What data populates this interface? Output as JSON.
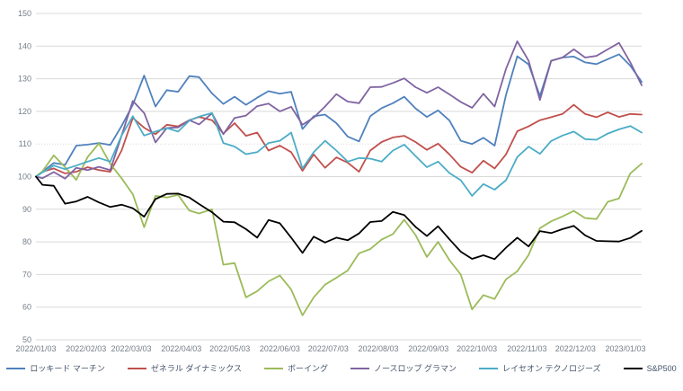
{
  "page": {
    "background": "#ffffff"
  },
  "chart_data": {
    "type": "line",
    "title": "",
    "description": "Indexed stock performance (2022/01/03 = 100) of five US defense companies vs S&P500, daily data sampled weekly",
    "index_base": 100,
    "x": {
      "dates": [
        "2022/01/03",
        "2022/01/07",
        "2022/01/14",
        "2022/01/21",
        "2022/01/28",
        "2022/02/04",
        "2022/02/11",
        "2022/02/18",
        "2022/02/25",
        "2022/03/04",
        "2022/03/11",
        "2022/03/18",
        "2022/03/25",
        "2022/04/01",
        "2022/04/08",
        "2022/04/14",
        "2022/04/22",
        "2022/04/29",
        "2022/05/06",
        "2022/05/13",
        "2022/05/20",
        "2022/05/27",
        "2022/06/03",
        "2022/06/10",
        "2022/06/17",
        "2022/06/24",
        "2022/07/01",
        "2022/07/08",
        "2022/07/15",
        "2022/07/22",
        "2022/07/29",
        "2022/08/05",
        "2022/08/12",
        "2022/08/19",
        "2022/08/26",
        "2022/09/02",
        "2022/09/09",
        "2022/09/16",
        "2022/09/23",
        "2022/09/30",
        "2022/10/07",
        "2022/10/14",
        "2022/10/21",
        "2022/10/28",
        "2022/11/04",
        "2022/11/11",
        "2022/11/18",
        "2022/11/25",
        "2022/12/02",
        "2022/12/09",
        "2022/12/16",
        "2022/12/23",
        "2022/12/30",
        "2023/01/06",
        "2023/01/13"
      ],
      "tick_labels": [
        "2022/01/03",
        "2022/02/03",
        "2022/03/03",
        "2022/04/03",
        "2022/05/03",
        "2022/06/03",
        "2022/07/03",
        "2022/08/03",
        "2022/09/03",
        "2022/10/03",
        "2022/11/03",
        "2022/12/03",
        "2023/01/03"
      ]
    },
    "ylim": [
      50,
      150
    ],
    "y_ticks": [
      150,
      140,
      130,
      120,
      110,
      100,
      90,
      80,
      70,
      60,
      50
    ],
    "grid": {
      "horizontal": true,
      "vertical": false,
      "color": "#d9d9d9",
      "dotted_line_at": 110
    },
    "legend_position": "bottom-center",
    "axis_text_color": "#757d87",
    "legend_text_color": "#44546a",
    "series": [
      {
        "name": "ロッキード マーチン",
        "color": "#4F81BD",
        "values": [
          100,
          101.5,
          104.2,
          103.6,
          109.5,
          109.8,
          110.3,
          109.7,
          115.5,
          122.0,
          131.0,
          121.5,
          126.5,
          126.0,
          130.8,
          130.5,
          125.5,
          122.3,
          124.5,
          122.0,
          124.2,
          126.2,
          125.4,
          126.0,
          114.6,
          118.5,
          119.0,
          116.4,
          112.3,
          110.8,
          118.5,
          121.0,
          122.5,
          124.5,
          120.9,
          118.3,
          120.3,
          117.2,
          111.0,
          110.0,
          111.9,
          109.5,
          125.0,
          136.9,
          134.4,
          124.7,
          135.5,
          136.5,
          136.8,
          135.0,
          134.5,
          136.0,
          137.5,
          134.0,
          129.0
        ]
      },
      {
        "name": "ゼネラル ダイナミックス",
        "color": "#C0504D",
        "values": [
          100,
          101.5,
          102.5,
          101.0,
          101.5,
          102.9,
          102.0,
          101.5,
          108.0,
          118.0,
          115.0,
          113.0,
          115.9,
          115.4,
          117.3,
          118.3,
          117.3,
          113.2,
          116.4,
          112.5,
          113.5,
          108.0,
          109.5,
          107.5,
          101.8,
          106.8,
          102.7,
          105.9,
          104.3,
          101.5,
          108.0,
          110.6,
          112.0,
          112.5,
          110.6,
          108.2,
          110.1,
          106.8,
          103.0,
          101.2,
          104.9,
          102.5,
          106.8,
          113.9,
          115.4,
          117.3,
          118.2,
          119.2,
          122.0,
          119.2,
          118.2,
          119.7,
          118.3,
          119.2,
          119.0
        ]
      },
      {
        "name": "ボーイング",
        "color": "#9BBB59",
        "values": [
          100,
          101.6,
          106.5,
          102.9,
          99.0,
          106.0,
          110.2,
          103.9,
          99.5,
          94.6,
          84.5,
          94.1,
          93.6,
          94.4,
          89.6,
          88.7,
          90.0,
          73.0,
          73.5,
          63.0,
          64.9,
          67.9,
          69.7,
          65.4,
          57.5,
          63.0,
          66.9,
          69.0,
          71.2,
          76.5,
          77.8,
          80.7,
          82.4,
          86.8,
          82.1,
          75.4,
          80.0,
          74.4,
          70.0,
          59.3,
          63.7,
          62.5,
          68.5,
          71.0,
          76.0,
          84.2,
          86.3,
          87.8,
          89.5,
          87.3,
          87.0,
          92.3,
          93.3,
          101.0,
          104.0
        ]
      },
      {
        "name": "ノースロップ グラマン",
        "color": "#8064A2",
        "values": [
          100,
          99.5,
          101.4,
          99.4,
          102.7,
          102.0,
          103.0,
          102.0,
          112.6,
          123.2,
          119.5,
          110.5,
          114.9,
          115.1,
          117.3,
          116.0,
          119.4,
          113.0,
          118.0,
          118.7,
          121.6,
          122.4,
          120.0,
          121.4,
          115.9,
          118.1,
          121.5,
          125.3,
          123.0,
          122.5,
          127.4,
          127.5,
          128.7,
          130.1,
          127.4,
          125.7,
          127.4,
          125.2,
          122.9,
          121.1,
          125.4,
          121.5,
          133.0,
          141.5,
          135.5,
          123.5,
          135.5,
          136.5,
          139.0,
          136.5,
          137.0,
          139.0,
          141.0,
          135.0,
          128.0
        ]
      },
      {
        "name": "レイセオン テクノロジーズ",
        "color": "#4BACC6",
        "values": [
          100,
          101.3,
          103.4,
          102.3,
          103.4,
          104.6,
          105.7,
          104.6,
          112.6,
          118.5,
          112.6,
          113.8,
          114.9,
          113.8,
          117.2,
          118.4,
          119.5,
          110.3,
          109.2,
          106.9,
          107.5,
          110.3,
          111.0,
          113.5,
          102.5,
          107.5,
          111.0,
          108.0,
          104.6,
          105.7,
          105.5,
          104.6,
          108.0,
          109.8,
          106.3,
          102.9,
          104.6,
          101.1,
          98.9,
          94.1,
          97.7,
          96.0,
          98.9,
          106.0,
          109.2,
          107.0,
          110.9,
          112.6,
          113.8,
          111.5,
          111.3,
          113.2,
          114.5,
          115.5,
          113.5
        ]
      },
      {
        "name": "S&P500",
        "color": "#000000",
        "values": [
          100,
          97.5,
          97.2,
          91.7,
          92.4,
          93.8,
          92.1,
          90.7,
          91.4,
          90.3,
          87.7,
          93.1,
          94.7,
          94.8,
          93.6,
          91.6,
          89.1,
          86.2,
          86.0,
          83.9,
          81.3,
          86.7,
          85.7,
          81.3,
          76.6,
          81.6,
          79.8,
          81.3,
          80.5,
          82.6,
          86.1,
          86.4,
          89.2,
          88.2,
          84.6,
          81.8,
          84.8,
          80.8,
          77.0,
          74.8,
          75.9,
          74.7,
          78.2,
          81.3,
          78.6,
          83.3,
          82.7,
          83.9,
          84.9,
          82.0,
          80.3,
          80.2,
          80.1,
          81.2,
          83.4
        ]
      }
    ]
  }
}
